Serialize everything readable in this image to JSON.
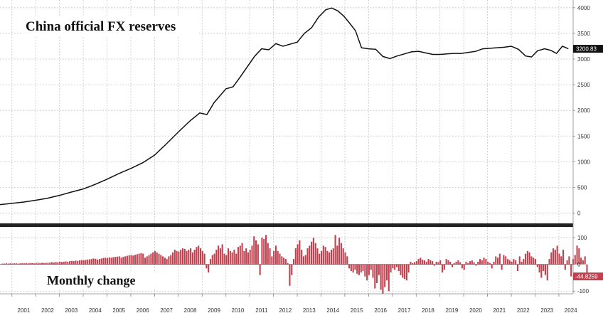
{
  "chart_data": [
    {
      "type": "line",
      "title": "China official FX reserves",
      "xlabel": "",
      "ylabel": "",
      "xlim": [
        2000.5,
        2024.6
      ],
      "ylim": [
        -200,
        4150
      ],
      "y_ticks": [
        "0",
        "500",
        "1000",
        "1500",
        "2000",
        "2500",
        "3000",
        "3500",
        "4000"
      ],
      "grid": true,
      "last_value_label": "3200.83",
      "series": [
        {
          "x": [
            2000.5,
            2001.0,
            2001.5,
            2002.0,
            2002.5,
            2003.0,
            2003.5,
            2004.0,
            2004.5,
            2005.0,
            2005.5,
            2006.0,
            2006.5,
            2007.0,
            2007.5,
            2008.0,
            2008.5,
            2008.9,
            2009.2,
            2009.5,
            2010.0,
            2010.3,
            2010.6,
            2010.9,
            2011.2,
            2011.5,
            2011.8,
            2012.1,
            2012.4,
            2012.7,
            2013.0,
            2013.3,
            2013.6,
            2013.9,
            2014.2,
            2014.45,
            2014.7,
            2014.95,
            2015.2,
            2015.45,
            2015.7,
            2016.0,
            2016.3,
            2016.6,
            2016.9,
            2017.2,
            2017.5,
            2017.8,
            2018.1,
            2018.4,
            2018.7,
            2019.0,
            2019.3,
            2019.6,
            2019.9,
            2020.2,
            2020.5,
            2020.8,
            2021.1,
            2021.4,
            2021.7,
            2022.0,
            2022.3,
            2022.6,
            2022.85,
            2023.1,
            2023.4,
            2023.65,
            2023.9,
            2024.15,
            2024.4
          ],
          "y": [
            165,
            190,
            215,
            250,
            290,
            345,
            410,
            470,
            560,
            660,
            770,
            870,
            980,
            1130,
            1350,
            1580,
            1800,
            1950,
            1920,
            2150,
            2420,
            2460,
            2650,
            2850,
            3050,
            3200,
            3180,
            3300,
            3250,
            3290,
            3330,
            3500,
            3610,
            3820,
            3960,
            3993,
            3940,
            3840,
            3700,
            3550,
            3220,
            3200,
            3190,
            3050,
            3010,
            3060,
            3100,
            3140,
            3150,
            3120,
            3090,
            3090,
            3100,
            3110,
            3110,
            3130,
            3150,
            3200,
            3210,
            3220,
            3230,
            3250,
            3190,
            3060,
            3040,
            3160,
            3200,
            3170,
            3110,
            3250,
            3200
          ]
        }
      ]
    },
    {
      "type": "bar",
      "title": "Monthly change",
      "xlabel": "",
      "ylabel": "",
      "xlim": [
        2000.5,
        2024.6
      ],
      "ylim": [
        -110,
        140
      ],
      "y_ticks": [
        "-100",
        "0",
        "100"
      ],
      "grid": true,
      "last_value_label": "-44.8259",
      "x_start": 2000.6,
      "x_step": 0.08333,
      "values": [
        3,
        3,
        4,
        3,
        4,
        3,
        4,
        4,
        3,
        4,
        4,
        4,
        5,
        4,
        5,
        5,
        4,
        5,
        6,
        5,
        6,
        5,
        6,
        6,
        7,
        8,
        7,
        9,
        8,
        10,
        9,
        10,
        11,
        10,
        12,
        13,
        12,
        14,
        13,
        15,
        16,
        15,
        17,
        18,
        19,
        20,
        22,
        21,
        18,
        20,
        22,
        24,
        25,
        24,
        26,
        25,
        27,
        28,
        29,
        30,
        25,
        28,
        30,
        32,
        34,
        35,
        33,
        36,
        38,
        40,
        42,
        40,
        25,
        30,
        35,
        40,
        45,
        50,
        45,
        40,
        35,
        30,
        25,
        20,
        30,
        35,
        45,
        55,
        50,
        48,
        55,
        60,
        58,
        50,
        55,
        60,
        45,
        55,
        65,
        70,
        60,
        50,
        40,
        -15,
        -30,
        20,
        35,
        40,
        55,
        70,
        60,
        75,
        40,
        35,
        60,
        50,
        45,
        55,
        40,
        65,
        70,
        80,
        50,
        60,
        45,
        55,
        70,
        105,
        90,
        75,
        -40,
        100,
        95,
        110,
        80,
        60,
        30,
        50,
        70,
        50,
        40,
        30,
        25,
        20,
        5,
        -80,
        -40,
        20,
        60,
        75,
        90,
        55,
        30,
        35,
        60,
        70,
        85,
        100,
        80,
        60,
        40,
        50,
        70,
        65,
        50,
        45,
        55,
        60,
        110,
        70,
        100,
        80,
        60,
        45,
        30,
        -15,
        -25,
        -30,
        -20,
        -35,
        -40,
        -30,
        -25,
        -45,
        -60,
        -40,
        -20,
        -50,
        -90,
        -70,
        -40,
        -95,
        -110,
        -85,
        -60,
        -100,
        -30,
        -15,
        -20,
        -10,
        -25,
        -40,
        -50,
        -55,
        -60,
        -30,
        10,
        5,
        8,
        12,
        20,
        25,
        18,
        15,
        10,
        20,
        15,
        12,
        -5,
        10,
        8,
        15,
        -30,
        -20,
        20,
        15,
        10,
        -10,
        5,
        10,
        15,
        8,
        -15,
        -20,
        10,
        5,
        12,
        15,
        8,
        -5,
        10,
        20,
        15,
        25,
        20,
        10,
        5,
        -15,
        10,
        30,
        25,
        40,
        -20,
        35,
        30,
        20,
        15,
        10,
        20,
        15,
        -25,
        30,
        10,
        20,
        40,
        50,
        45,
        30,
        25,
        20,
        -10,
        -30,
        -50,
        -25,
        -40,
        -60,
        20,
        45,
        60,
        55,
        70,
        40,
        30,
        55,
        -20,
        15,
        30,
        -45,
        20,
        35,
        70,
        60,
        25,
        15,
        30,
        -45
      ]
    }
  ],
  "x_axis": {
    "labels": [
      "2001",
      "2002",
      "2003",
      "2004",
      "2005",
      "2006",
      "2007",
      "2008",
      "2009",
      "2010",
      "2011",
      "2012",
      "2013",
      "2014",
      "2015",
      "2016",
      "2017",
      "2018",
      "2019",
      "2020",
      "2021",
      "2022",
      "2023",
      "2024"
    ]
  },
  "colors": {
    "line": "#111111",
    "bars": "#c0404e",
    "divider": "#222222",
    "grid": "#c8c8c8",
    "label_box_dark": "#111111",
    "label_box_red": "#c0404e"
  }
}
